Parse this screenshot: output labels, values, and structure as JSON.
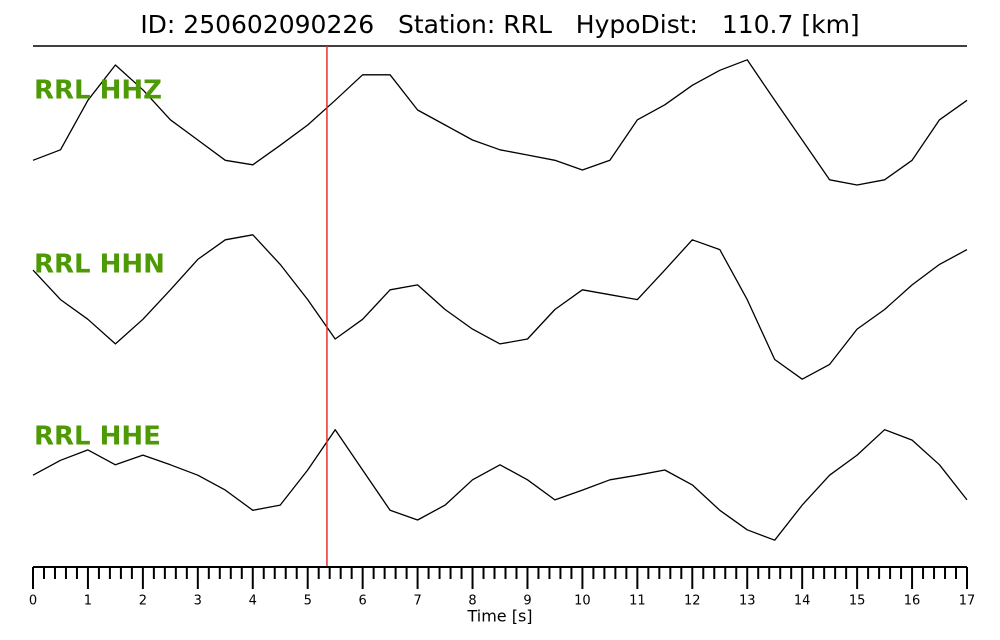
{
  "chart_data": {
    "type": "seismogram",
    "title": "ID: 250602090226   Station: RRL   HypoDist:   110.7 [km]",
    "x_label": "Time [s]",
    "xlim": [
      0,
      17
    ],
    "xticks": [
      0,
      1,
      2,
      3,
      4,
      5,
      6,
      7,
      8,
      9,
      10,
      11,
      12,
      13,
      14,
      15,
      16,
      17
    ],
    "xminorticks": [
      0.2,
      0.4,
      0.6,
      0.8,
      1.2,
      1.4,
      1.6,
      1.8,
      2.2,
      2.4,
      2.6,
      2.8,
      3.2,
      3.4,
      3.6,
      3.8,
      4.2,
      4.4,
      4.6,
      4.8,
      5.2,
      5.4,
      5.6,
      5.8,
      6.2,
      6.4,
      6.6,
      6.8,
      7.2,
      7.4,
      7.6,
      7.8,
      8.2,
      8.4,
      8.6,
      8.8,
      9.2,
      9.4,
      9.6,
      9.8,
      10.2,
      10.4,
      10.6,
      10.8,
      11.2,
      11.4,
      11.6,
      11.8,
      12.2,
      12.4,
      12.6,
      12.8,
      13.2,
      13.4,
      13.6,
      13.8,
      14.2,
      14.4,
      14.6,
      14.8,
      15.2,
      15.4,
      15.6,
      15.8,
      16.2,
      16.4,
      16.6,
      16.8
    ],
    "ylim": [
      -1,
      1
    ],
    "pick_time": 5.35,
    "pick_color": "#e8302a",
    "label_color": "#4e9a06",
    "x": [
      0,
      0.5,
      1,
      1.5,
      2,
      2.5,
      3,
      3.5,
      4,
      4.5,
      5,
      5.5,
      6,
      6.5,
      7,
      7.5,
      8,
      8.5,
      9,
      9.5,
      10,
      10.5,
      11,
      11.5,
      12,
      12.5,
      13,
      13.5,
      14,
      14.5,
      15,
      15.5,
      16,
      16.5,
      17
    ],
    "series": [
      {
        "name": "RRL HHZ",
        "color": "#000000",
        "values": [
          -0.47,
          -0.33,
          0.33,
          0.8,
          0.47,
          0.07,
          -0.2,
          -0.47,
          -0.53,
          -0.27,
          0,
          0.33,
          0.67,
          0.67,
          0.2,
          0,
          -0.2,
          -0.33,
          -0.4,
          -0.47,
          -0.6,
          -0.47,
          0.07,
          0.27,
          0.53,
          0.73,
          0.87,
          0.33,
          -0.2,
          -0.73,
          -0.8,
          -0.73,
          -0.47,
          0.07,
          0.33
        ]
      },
      {
        "name": "RRL HHN",
        "color": "#000000",
        "values": [
          0.45,
          0.09,
          -0.15,
          -0.45,
          -0.15,
          0.21,
          0.58,
          0.82,
          0.88,
          0.52,
          0.09,
          -0.39,
          -0.15,
          0.21,
          0.27,
          -0.03,
          -0.27,
          -0.45,
          -0.39,
          -0.03,
          0.21,
          0.15,
          0.09,
          0.45,
          0.82,
          0.7,
          0.09,
          -0.64,
          -0.88,
          -0.7,
          -0.27,
          -0.03,
          0.27,
          0.52,
          0.7
        ]
      },
      {
        "name": "RRL HHE",
        "color": "#000000",
        "values": [
          0.12,
          0.35,
          0.51,
          0.28,
          0.43,
          0.28,
          0.12,
          -0.11,
          -0.42,
          -0.34,
          0.2,
          0.82,
          0.2,
          -0.42,
          -0.57,
          -0.34,
          0.05,
          0.28,
          0.05,
          -0.26,
          -0.11,
          0.05,
          0.12,
          0.2,
          -0.03,
          -0.42,
          -0.72,
          -0.88,
          -0.34,
          0.12,
          0.43,
          0.82,
          0.66,
          0.28,
          -0.26
        ]
      }
    ]
  }
}
